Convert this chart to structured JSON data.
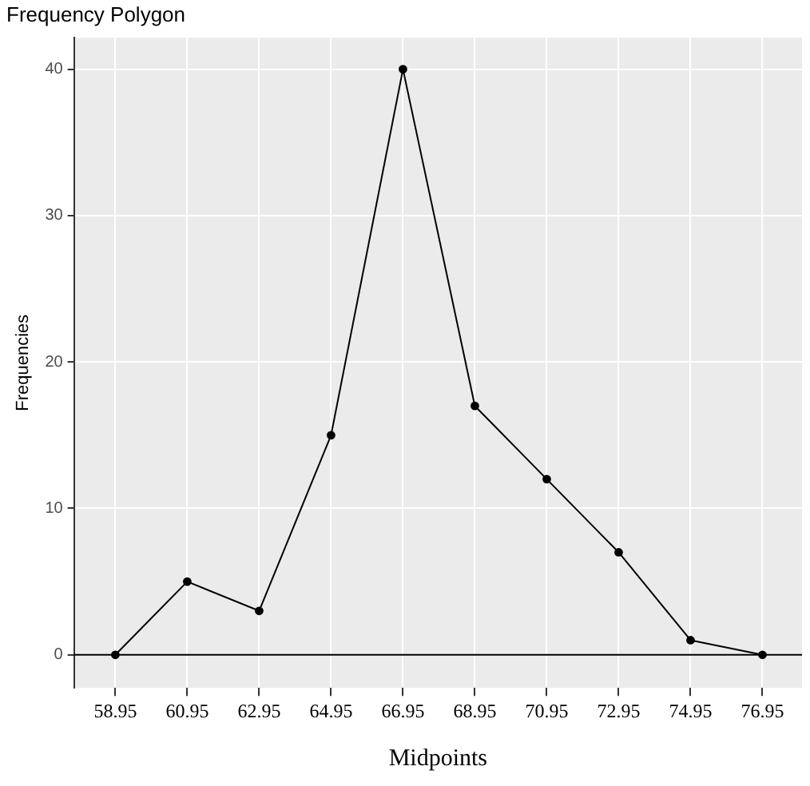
{
  "chart_data": {
    "type": "line",
    "title": "Frequency Polygon",
    "xlabel": "Midpoints",
    "ylabel": "Frequencies",
    "x": [
      58.95,
      60.95,
      62.95,
      64.95,
      66.95,
      68.95,
      70.95,
      72.95,
      74.95,
      76.95
    ],
    "series": [
      {
        "color": "#000000",
        "values": [
          0,
          5,
          3,
          15,
          40,
          17,
          12,
          7,
          1,
          0
        ]
      }
    ],
    "xlim": [
      57.8,
      78.05
    ],
    "xticks": [
      58.95,
      60.95,
      62.95,
      64.95,
      66.95,
      68.95,
      70.95,
      72.95,
      74.95,
      76.95
    ],
    "ylim": [
      -2.26,
      42.15
    ],
    "yticks": [
      0,
      10,
      20,
      30,
      40
    ],
    "ref_lines": [
      {
        "axis": "y",
        "value": 0,
        "color": "#000000"
      }
    ],
    "grid": true,
    "marker": "circle",
    "line_style": "solid"
  }
}
